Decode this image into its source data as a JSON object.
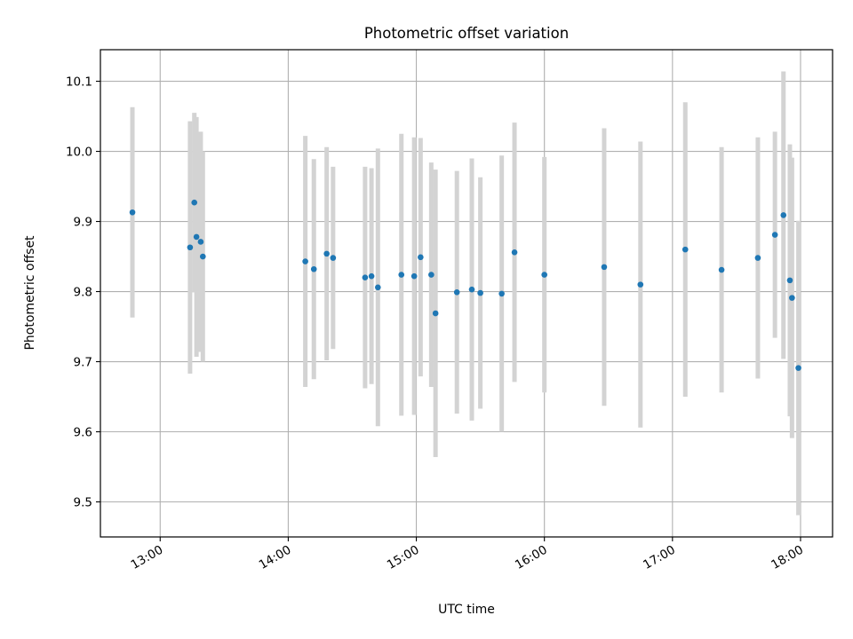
{
  "chart_data": {
    "type": "scatter",
    "title": "Photometric offset variation",
    "xlabel": "UTC time",
    "ylabel": "Photometric offset",
    "x_ticks": [
      "13:00",
      "14:00",
      "15:00",
      "16:00",
      "17:00",
      "18:00"
    ],
    "y_ticks": [
      "9.5",
      "9.6",
      "9.7",
      "9.8",
      "9.9",
      "10.0",
      "10.1"
    ],
    "xlim": [
      "12:32",
      "18:15"
    ],
    "ylim": [
      9.45,
      10.145
    ],
    "grid": true,
    "marker_color": "#1f77b4",
    "errorbar_color": "#d3d3d3",
    "points": [
      {
        "x": "12:47",
        "y": 9.913,
        "err": 0.15
      },
      {
        "x": "13:14",
        "y": 9.863,
        "err": 0.18
      },
      {
        "x": "13:16",
        "y": 9.927,
        "err": 0.128
      },
      {
        "x": "13:17",
        "y": 9.878,
        "err": 0.171
      },
      {
        "x": "13:19",
        "y": 9.871,
        "err": 0.157
      },
      {
        "x": "13:20",
        "y": 9.85,
        "err": 0.15
      },
      {
        "x": "14:08",
        "y": 9.843,
        "err": 0.179
      },
      {
        "x": "14:12",
        "y": 9.832,
        "err": 0.157
      },
      {
        "x": "14:18",
        "y": 9.854,
        "err": 0.152
      },
      {
        "x": "14:21",
        "y": 9.848,
        "err": 0.13
      },
      {
        "x": "14:36",
        "y": 9.82,
        "err": 0.158
      },
      {
        "x": "14:39",
        "y": 9.822,
        "err": 0.154
      },
      {
        "x": "14:42",
        "y": 9.806,
        "err": 0.198
      },
      {
        "x": "14:53",
        "y": 9.824,
        "err": 0.201
      },
      {
        "x": "14:59",
        "y": 9.822,
        "err": 0.198
      },
      {
        "x": "15:02",
        "y": 9.849,
        "err": 0.17
      },
      {
        "x": "15:07",
        "y": 9.824,
        "err": 0.16
      },
      {
        "x": "15:09",
        "y": 9.769,
        "err": 0.205
      },
      {
        "x": "15:19",
        "y": 9.799,
        "err": 0.173
      },
      {
        "x": "15:26",
        "y": 9.803,
        "err": 0.187
      },
      {
        "x": "15:30",
        "y": 9.798,
        "err": 0.165
      },
      {
        "x": "15:40",
        "y": 9.797,
        "err": 0.197
      },
      {
        "x": "15:46",
        "y": 9.856,
        "err": 0.185
      },
      {
        "x": "16:00",
        "y": 9.824,
        "err": 0.168
      },
      {
        "x": "16:28",
        "y": 9.835,
        "err": 0.198
      },
      {
        "x": "16:45",
        "y": 9.81,
        "err": 0.204
      },
      {
        "x": "17:06",
        "y": 9.86,
        "err": 0.21
      },
      {
        "x": "17:23",
        "y": 9.831,
        "err": 0.175
      },
      {
        "x": "17:40",
        "y": 9.848,
        "err": 0.172
      },
      {
        "x": "17:48",
        "y": 9.881,
        "err": 0.147
      },
      {
        "x": "17:52",
        "y": 9.909,
        "err": 0.205
      },
      {
        "x": "17:55",
        "y": 9.816,
        "err": 0.194
      },
      {
        "x": "17:56",
        "y": 9.791,
        "err": 0.2
      },
      {
        "x": "17:59",
        "y": 9.691,
        "err": 0.21
      }
    ]
  }
}
